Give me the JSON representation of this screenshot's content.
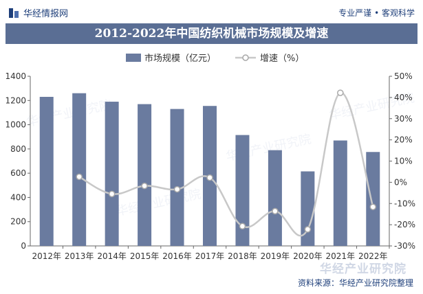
{
  "header": {
    "brand": "华经情报网",
    "slogan": "专业严谨 • 客观科学"
  },
  "footer": {
    "source": "资料来源：华经产业研究院整理",
    "watermark": "华经产业研究院"
  },
  "colors": {
    "bar": "#6a7b9f",
    "line": "#c8c8c8",
    "title_bg": "#5a6e94"
  },
  "chart_data": {
    "type": "bar",
    "title": "2012-2022年中国纺织机械市场规模及增速",
    "categories": [
      "2012年",
      "2013年",
      "2014年",
      "2015年",
      "2016年",
      "2017年",
      "2018年",
      "2019年",
      "2020年",
      "2021年",
      "2022年"
    ],
    "series": [
      {
        "name": "市场规模（亿元）",
        "type": "bar",
        "axis": "left",
        "values": [
          1230,
          1260,
          1190,
          1170,
          1130,
          1155,
          915,
          790,
          615,
          870,
          775
        ]
      },
      {
        "name": "增速（%）",
        "type": "line",
        "axis": "right",
        "values": [
          null,
          2.6,
          -5.5,
          -1.7,
          -3.3,
          2.2,
          -20.7,
          -13.6,
          -22.2,
          42.2,
          -11.6
        ]
      }
    ],
    "y_left": {
      "min": 0,
      "max": 1400,
      "step": 200,
      "ticks": [
        "0",
        "200",
        "400",
        "600",
        "800",
        "1000",
        "1200",
        "1400"
      ]
    },
    "y_right": {
      "min": -30,
      "max": 50,
      "step": 10,
      "ticks": [
        "-30%",
        "-20%",
        "-10%",
        "0%",
        "10%",
        "20%",
        "30%",
        "40%",
        "50%"
      ]
    },
    "legend_position": "top-center",
    "grid": false
  }
}
